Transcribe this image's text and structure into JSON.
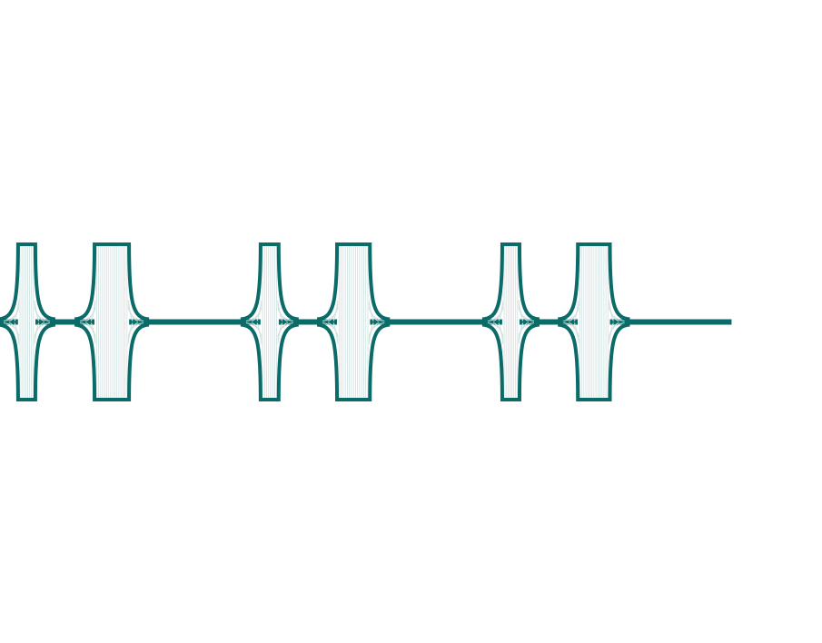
{
  "chart_data": {
    "type": "line",
    "title": "",
    "xlabel": "",
    "ylabel": "",
    "grid": false,
    "legend": "none",
    "axes_visible": false,
    "xlim": [
      0,
      1000
    ],
    "ylim": [
      -1,
      1
    ],
    "baseline": 0,
    "series": [
      {
        "color": "#0b6b68",
        "fill_color": "#cfe1e0",
        "bursts": [
          {
            "start": 22,
            "end": 43,
            "amplitude": 1.0
          },
          {
            "start": 115,
            "end": 157,
            "amplitude": 1.0
          },
          {
            "start": 317,
            "end": 339,
            "amplitude": 1.0
          },
          {
            "start": 410,
            "end": 450,
            "amplitude": 1.0
          },
          {
            "start": 611,
            "end": 632,
            "amplitude": 1.0
          },
          {
            "start": 703,
            "end": 742,
            "amplitude": 1.0
          }
        ],
        "x_end": 890
      }
    ]
  }
}
